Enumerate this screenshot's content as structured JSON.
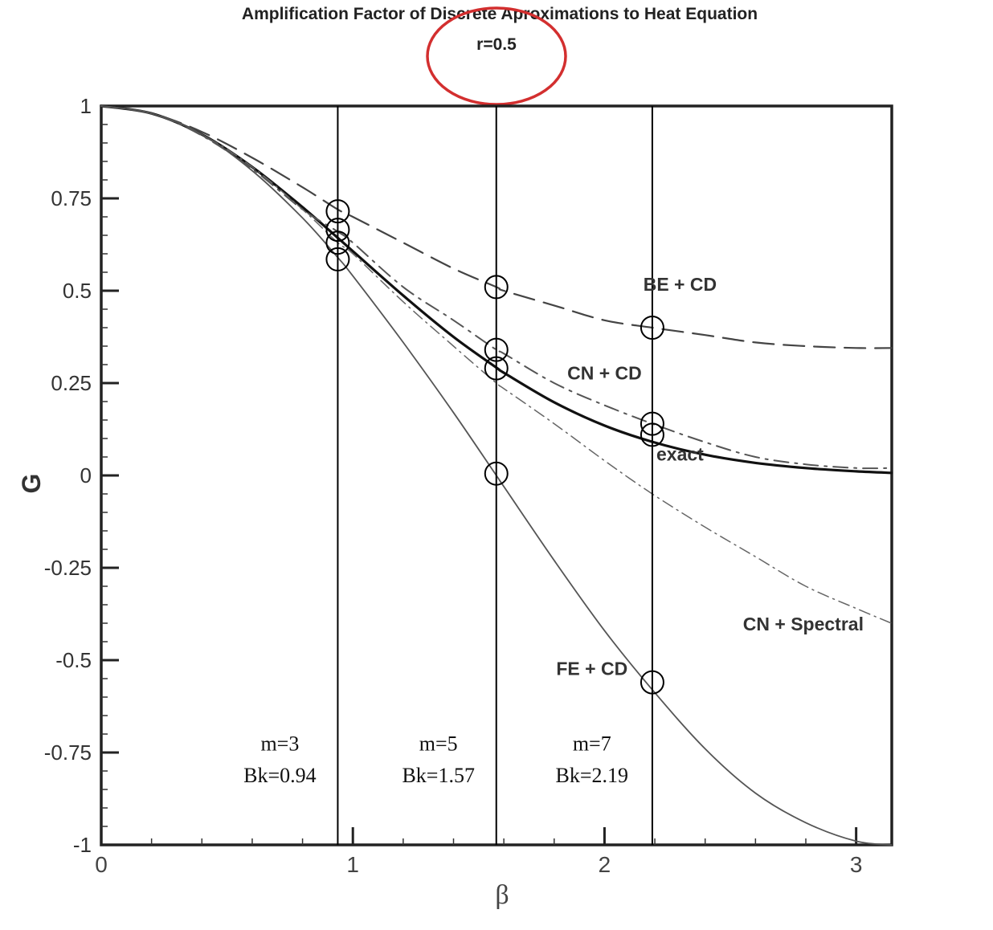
{
  "chart_data": {
    "type": "line",
    "title": "Amplification Factor of Discrete Aproximations to Heat Equation",
    "subtitle": "r=0.5",
    "xlabel": "β",
    "ylabel": "G",
    "xlim": [
      0,
      3.14159
    ],
    "ylim": [
      -1,
      1
    ],
    "x_ticks": [
      0,
      1,
      2,
      3
    ],
    "y_ticks": [
      1,
      0.75,
      0.5,
      0.25,
      0,
      -0.25,
      -0.5,
      -0.75,
      -1
    ],
    "x_tick_labels": [
      "0",
      "1",
      "2",
      "3"
    ],
    "y_tick_labels": [
      "1",
      "0.75",
      "0.5",
      "0.25",
      "0",
      "-0.25",
      "-0.5",
      "-0.75",
      "-1"
    ],
    "grid": false,
    "series": [
      {
        "name": "exact",
        "style": "solid-thick",
        "x": [
          0,
          0.2,
          0.4,
          0.6,
          0.8,
          0.94,
          1.0,
          1.2,
          1.4,
          1.57,
          1.6,
          1.8,
          2.0,
          2.19,
          2.4,
          2.6,
          2.8,
          3.0,
          3.14
        ],
        "y": [
          1.0,
          0.98,
          0.923,
          0.835,
          0.726,
          0.643,
          0.607,
          0.487,
          0.375,
          0.292,
          0.278,
          0.198,
          0.135,
          0.091,
          0.056,
          0.034,
          0.02,
          0.011,
          0.007
        ]
      },
      {
        "name": "BE + CD",
        "style": "dashed",
        "x": [
          0,
          0.2,
          0.4,
          0.6,
          0.8,
          0.94,
          1.0,
          1.2,
          1.4,
          1.57,
          1.6,
          1.8,
          2.0,
          2.19,
          2.4,
          2.6,
          2.8,
          3.0,
          3.14
        ],
        "y": [
          1.0,
          0.98,
          0.93,
          0.86,
          0.78,
          0.72,
          0.7,
          0.63,
          0.56,
          0.51,
          0.5,
          0.46,
          0.42,
          0.4,
          0.38,
          0.36,
          0.35,
          0.345,
          0.345
        ]
      },
      {
        "name": "CN + CD",
        "style": "dash-dot",
        "x": [
          0,
          0.2,
          0.4,
          0.6,
          0.8,
          0.94,
          1.0,
          1.2,
          1.4,
          1.57,
          1.6,
          1.8,
          2.0,
          2.19,
          2.4,
          2.6,
          2.8,
          3.0,
          3.14
        ],
        "y": [
          1.0,
          0.98,
          0.92,
          0.83,
          0.72,
          0.66,
          0.63,
          0.51,
          0.42,
          0.34,
          0.33,
          0.25,
          0.19,
          0.14,
          0.09,
          0.05,
          0.03,
          0.02,
          0.02
        ]
      },
      {
        "name": "CN + Spectral",
        "style": "dash-dot-thin",
        "x": [
          0,
          0.2,
          0.4,
          0.6,
          0.8,
          0.94,
          1.0,
          1.2,
          1.4,
          1.57,
          1.6,
          1.8,
          2.0,
          2.19,
          2.4,
          2.6,
          2.8,
          3.0,
          3.14
        ],
        "y": [
          1.0,
          0.98,
          0.923,
          0.835,
          0.72,
          0.63,
          0.6,
          0.47,
          0.35,
          0.25,
          0.235,
          0.14,
          0.04,
          -0.05,
          -0.14,
          -0.22,
          -0.3,
          -0.36,
          -0.4
        ]
      },
      {
        "name": "FE + CD",
        "style": "solid-thin",
        "x": [
          0,
          0.2,
          0.4,
          0.6,
          0.8,
          0.94,
          1.0,
          1.2,
          1.4,
          1.57,
          1.6,
          1.8,
          2.0,
          2.19,
          2.4,
          2.6,
          2.8,
          3.0,
          3.14
        ],
        "y": [
          1.0,
          0.98,
          0.923,
          0.825,
          0.697,
          0.59,
          0.54,
          0.36,
          0.17,
          0.0,
          -0.03,
          -0.23,
          -0.42,
          -0.58,
          -0.74,
          -0.86,
          -0.94,
          -0.99,
          -1.0
        ]
      }
    ],
    "curve_labels": [
      {
        "text": "BE + CD",
        "x": 2.3,
        "y": 0.5
      },
      {
        "text": "CN + CD",
        "x": 2.0,
        "y": 0.26
      },
      {
        "text": "exact",
        "x": 2.3,
        "y": 0.04
      },
      {
        "text": "CN + Spectral",
        "x": 2.79,
        "y": -0.42
      },
      {
        "text": "FE + CD",
        "x": 1.95,
        "y": -0.54
      }
    ],
    "vertical_lines": [
      {
        "x": 0.94,
        "m_label": "m=3",
        "bk_label": "Bk=0.94",
        "label_x": 0.71
      },
      {
        "x": 1.57,
        "m_label": "m=5",
        "bk_label": "Bk=1.57",
        "label_x": 1.34
      },
      {
        "x": 2.19,
        "m_label": "m=7",
        "bk_label": "Bk=2.19",
        "label_x": 1.95
      }
    ],
    "circled_points": [
      {
        "x": 0.94,
        "y": 0.715
      },
      {
        "x": 0.94,
        "y": 0.665
      },
      {
        "x": 0.94,
        "y": 0.63
      },
      {
        "x": 0.94,
        "y": 0.585
      },
      {
        "x": 1.57,
        "y": 0.51
      },
      {
        "x": 1.57,
        "y": 0.34
      },
      {
        "x": 1.57,
        "y": 0.29
      },
      {
        "x": 1.57,
        "y": 0.005
      },
      {
        "x": 2.19,
        "y": 0.4
      },
      {
        "x": 2.19,
        "y": 0.14
      },
      {
        "x": 2.19,
        "y": 0.11
      },
      {
        "x": 2.19,
        "y": -0.56
      }
    ],
    "highlight_color": "#d32f2f"
  }
}
